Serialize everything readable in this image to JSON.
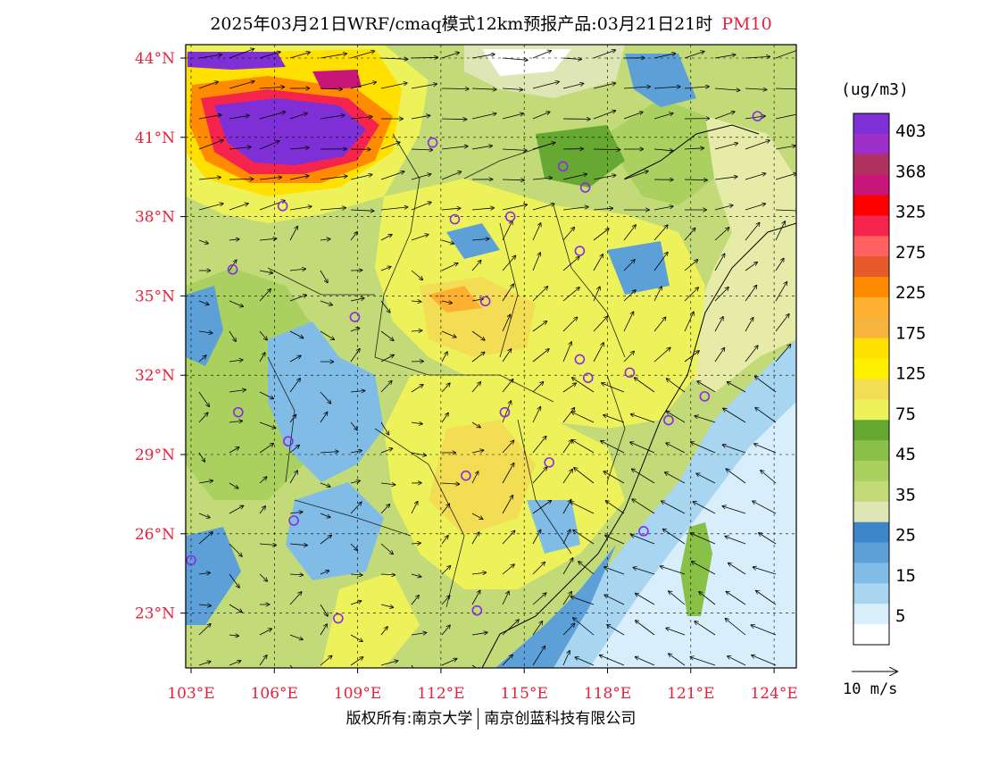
{
  "title": {
    "main": "2025年03月21日WRF/cmaq模式12km预报产品:03月21日21时",
    "pollutant": "PM10"
  },
  "footer": {
    "copyright": "版权所有:南京大学",
    "company": "南京创蓝科技有限公司"
  },
  "map": {
    "lat_labels": [
      "44°N",
      "41°N",
      "38°N",
      "35°N",
      "32°N",
      "29°N",
      "26°N",
      "23°N"
    ],
    "lat_values": [
      44,
      41,
      38,
      35,
      32,
      29,
      26,
      23
    ],
    "lon_labels": [
      "103°E",
      "106°E",
      "109°E",
      "112°E",
      "115°E",
      "118°E",
      "121°E",
      "124°E"
    ],
    "lon_values": [
      103,
      106,
      109,
      112,
      115,
      118,
      121,
      124
    ],
    "lat_range": [
      21,
      44.5
    ],
    "lon_range": [
      103,
      124
    ],
    "label_color": "#e8203a",
    "cities": [
      {
        "lon": 103.0,
        "lat": 25.0
      },
      {
        "lon": 104.5,
        "lat": 36.0
      },
      {
        "lon": 104.7,
        "lat": 30.6
      },
      {
        "lon": 106.3,
        "lat": 38.4
      },
      {
        "lon": 106.5,
        "lat": 29.5
      },
      {
        "lon": 106.7,
        "lat": 26.5
      },
      {
        "lon": 108.9,
        "lat": 34.2
      },
      {
        "lon": 108.3,
        "lat": 22.8
      },
      {
        "lon": 111.7,
        "lat": 40.8
      },
      {
        "lon": 112.5,
        "lat": 37.9
      },
      {
        "lon": 113.6,
        "lat": 34.8
      },
      {
        "lon": 114.3,
        "lat": 30.6
      },
      {
        "lon": 112.9,
        "lat": 28.2
      },
      {
        "lon": 113.3,
        "lat": 23.1
      },
      {
        "lon": 114.5,
        "lat": 38.0
      },
      {
        "lon": 116.4,
        "lat": 39.9
      },
      {
        "lon": 117.2,
        "lat": 39.1
      },
      {
        "lon": 117.0,
        "lat": 36.7
      },
      {
        "lon": 117.3,
        "lat": 31.9
      },
      {
        "lon": 118.8,
        "lat": 32.1
      },
      {
        "lon": 115.9,
        "lat": 28.7
      },
      {
        "lon": 119.3,
        "lat": 26.1
      },
      {
        "lon": 120.2,
        "lat": 30.3
      },
      {
        "lon": 121.5,
        "lat": 31.2
      },
      {
        "lon": 123.4,
        "lat": 41.8
      },
      {
        "lon": 117.0,
        "lat": 32.6
      }
    ]
  },
  "legend": {
    "unit": "(ug/m3)",
    "labels": [
      "403",
      "368",
      "325",
      "275",
      "225",
      "175",
      "125",
      "75",
      "45",
      "35",
      "25",
      "15",
      "5"
    ],
    "colors": [
      "#7e2fd6",
      "#9b2fc8",
      "#b03060",
      "#c8157a",
      "#ff0000",
      "#f5244d",
      "#ff6060",
      "#e85a2a",
      "#ff8c00",
      "#ffb030",
      "#f5b43c",
      "#ffe000",
      "#fff000",
      "#f2dd55",
      "#eef25a",
      "#66a832",
      "#88c048",
      "#aad060",
      "#c2da78",
      "#dde6b4",
      "#3d86c8",
      "#5da0d8",
      "#80bce6",
      "#a8d6f0",
      "#d8eefa",
      "#ffffff"
    ],
    "vector_label": "10 m/s"
  }
}
